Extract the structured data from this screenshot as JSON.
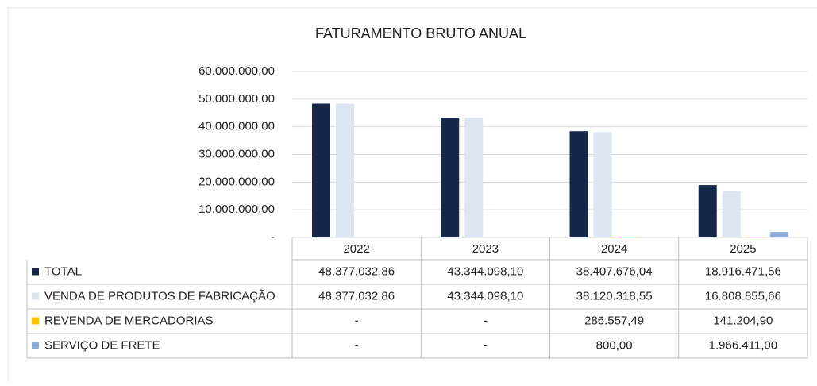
{
  "chart_data": {
    "type": "bar",
    "title": "FATURAMENTO BRUTO ANUAL",
    "categories": [
      "2022",
      "2023",
      "2024",
      "2025"
    ],
    "series": [
      {
        "name": "TOTAL",
        "color": "#16284a",
        "values": [
          48377032.86,
          43344098.1,
          38407676.04,
          18916471.56
        ],
        "value_labels": [
          "48.377.032,86",
          "43.344.098,10",
          "38.407.676,04",
          "18.916.471,56"
        ]
      },
      {
        "name": "VENDA DE PRODUTOS DE FABRICAÇÃO",
        "color": "#dce6f2",
        "values": [
          48377032.86,
          43344098.1,
          38120318.55,
          16808855.66
        ],
        "value_labels": [
          "48.377.032,86",
          "43.344.098,10",
          "38.120.318,55",
          "16.808.855,66"
        ]
      },
      {
        "name": "REVENDA DE MERCADORIAS",
        "color": "#ffc000",
        "values": [
          null,
          null,
          286557.49,
          141204.9
        ],
        "value_labels": [
          "-",
          "-",
          "286.557,49",
          "141.204,90"
        ]
      },
      {
        "name": "SERVIÇO DE FRETE",
        "color": "#8eaadb",
        "values": [
          null,
          null,
          800.0,
          1966411.0
        ],
        "value_labels": [
          "-",
          "-",
          "800,00",
          "1.966.411,00"
        ]
      }
    ],
    "ylim": [
      0,
      60000000
    ],
    "yticks": [
      {
        "value": 0,
        "label": "-"
      },
      {
        "value": 10000000,
        "label": "10.000.000,00"
      },
      {
        "value": 20000000,
        "label": "20.000.000,00"
      },
      {
        "value": 30000000,
        "label": "30.000.000,00"
      },
      {
        "value": 40000000,
        "label": "40.000.000,00"
      },
      {
        "value": 50000000,
        "label": "50.000.000,00"
      },
      {
        "value": 60000000,
        "label": "60.000.000,00"
      }
    ],
    "grid": true
  }
}
